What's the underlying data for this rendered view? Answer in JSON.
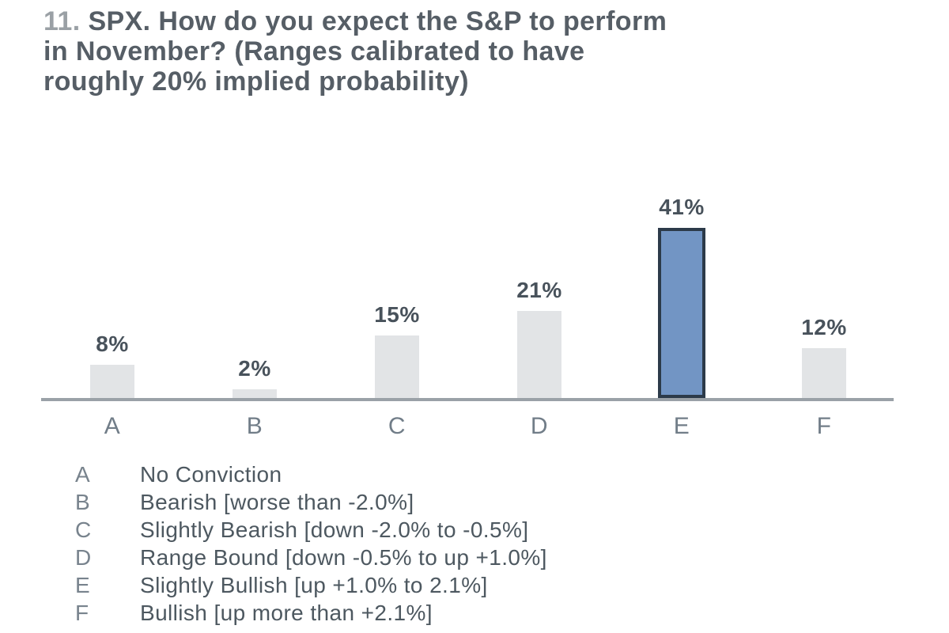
{
  "title": {
    "prefix": "11.",
    "line1_rest": " SPX. How do you expect the S&P to perform",
    "line2": "in November? (Ranges calibrated to have",
    "line3": "roughly 20% implied probability)"
  },
  "chart_data": {
    "type": "bar",
    "title": "11. SPX. How do you expect the S&P to perform in November? (Ranges calibrated to have roughly 20% implied probability)",
    "categories": [
      "A",
      "B",
      "C",
      "D",
      "E",
      "F"
    ],
    "values": [
      8,
      2,
      15,
      21,
      41,
      12
    ],
    "value_labels": [
      "8%",
      "2%",
      "15%",
      "21%",
      "41%",
      "12%"
    ],
    "highlight_index": 4,
    "xlabel": "",
    "ylabel": "",
    "ylim": [
      0,
      45
    ],
    "grid": false,
    "legend_position": "below",
    "bar_color": "#e2e4e6",
    "highlight_fill": "#7295c4",
    "highlight_border": "#2c3a49",
    "axis_color": "#9aa1a7"
  },
  "legend": {
    "items": [
      {
        "key": "A",
        "label": "No Conviction"
      },
      {
        "key": "B",
        "label": "Bearish [worse than -2.0%]"
      },
      {
        "key": "C",
        "label": "Slightly Bearish [down -2.0% to -0.5%]"
      },
      {
        "key": "D",
        "label": "Range Bound [down -0.5% to up +1.0%]"
      },
      {
        "key": "E",
        "label": "Slightly Bullish [up +1.0% to 2.1%]"
      },
      {
        "key": "F",
        "label": "Bullish [up more than +2.1%]"
      }
    ]
  },
  "colors": {
    "title_text": "#565e66",
    "title_prefix": "#9aa0a5",
    "value_label": "#48525b",
    "category_label": "#717d88",
    "legend_key": "#78838d",
    "legend_text": "#4d5860"
  }
}
